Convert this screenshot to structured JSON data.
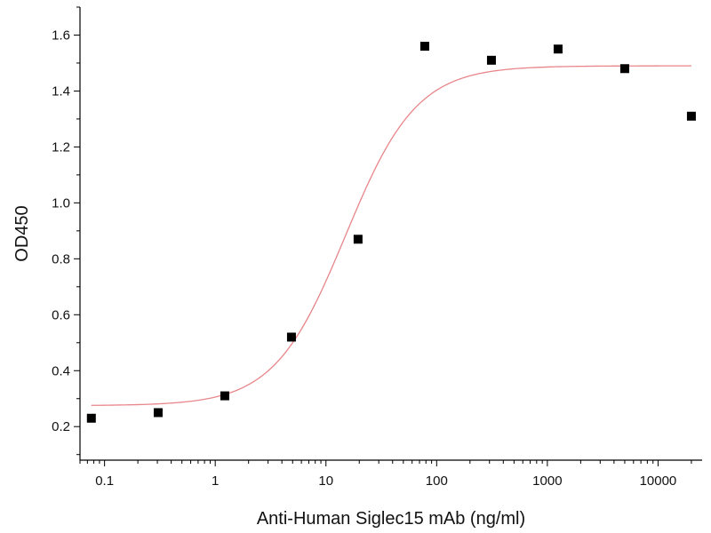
{
  "chart_data": {
    "type": "scatter",
    "title": "",
    "xlabel": "Anti-Human Siglec15 mAb (ng/ml)",
    "ylabel": "OD450",
    "x_scale": "log",
    "xlim": [
      0.06,
      25000
    ],
    "ylim": [
      0.08,
      1.7
    ],
    "x_ticks": [
      0.1,
      1,
      10,
      100,
      1000,
      10000
    ],
    "x_tick_labels": [
      "0.1",
      "1",
      "10",
      "100",
      "1000",
      "10000"
    ],
    "y_ticks": [
      0.2,
      0.4,
      0.6,
      0.8,
      1.0,
      1.2,
      1.4,
      1.6
    ],
    "y_tick_labels": [
      "0.2",
      "0.4",
      "0.6",
      "0.8",
      "1.0",
      "1.2",
      "1.4",
      "1.6"
    ],
    "grid": false,
    "legend": "none",
    "series": [
      {
        "kind": "points",
        "marker": "square",
        "color": "#000000",
        "x": [
          0.076,
          0.305,
          1.22,
          4.88,
          19.5,
          78.1,
          312.5,
          1250,
          5000,
          20000
        ],
        "y": [
          0.23,
          0.25,
          0.31,
          0.52,
          0.87,
          1.56,
          1.51,
          1.55,
          1.48,
          1.31
        ]
      },
      {
        "kind": "fit",
        "model": "4PL",
        "color": "#e8868a",
        "bottom": 0.275,
        "top": 1.49,
        "ec50": 15,
        "hill": 1.35,
        "x_range": [
          0.076,
          20000
        ]
      }
    ]
  }
}
